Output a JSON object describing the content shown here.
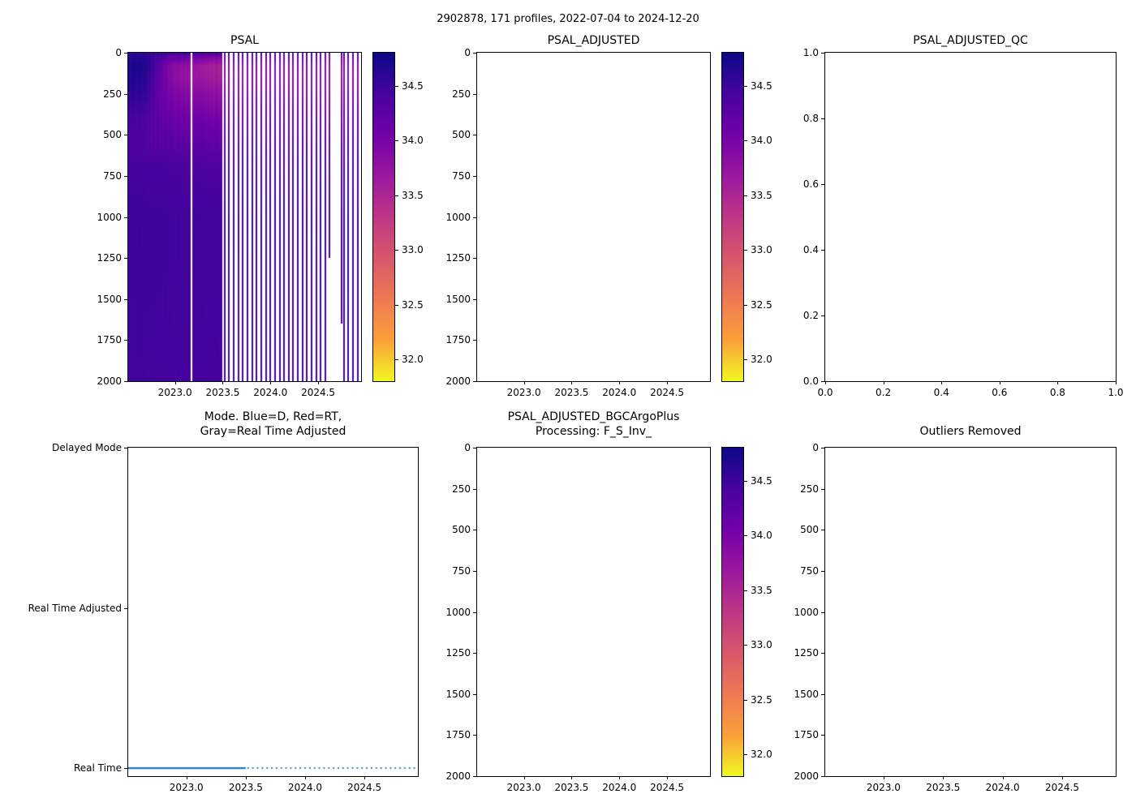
{
  "figure": {
    "title": "2902878, 171 profiles, 2022-07-04 to 2024-12-20"
  },
  "colors": {
    "line_blue": "#1f77b4",
    "axis": "#000000",
    "plasma_stops": [
      "#0d0887",
      "#46039f",
      "#7201a8",
      "#9c179e",
      "#bd3786",
      "#d8576b",
      "#ed7953",
      "#fb9f3a",
      "#f0f921"
    ]
  },
  "chart_data": [
    {
      "id": "psal",
      "type": "heatmap",
      "title": "PSAL",
      "x_axis": {
        "lim": [
          2022.51,
          2024.95
        ],
        "tick_values": [
          2023.0,
          2023.5,
          2024.0,
          2024.5
        ],
        "tick_labels": [
          "2023.0",
          "2023.5",
          "2024.0",
          "2024.5"
        ]
      },
      "y_axis": {
        "lim": [
          2000,
          0
        ],
        "tick_values": [
          0,
          250,
          500,
          750,
          1000,
          1250,
          1500,
          1750,
          2000
        ],
        "tick_labels": [
          "0",
          "250",
          "500",
          "750",
          "1000",
          "1250",
          "1500",
          "1750",
          "2000"
        ]
      },
      "colorbar": {
        "vmin": 31.8,
        "vmax": 34.8,
        "tick_values": [
          32.0,
          32.5,
          33.0,
          33.5,
          34.0,
          34.5
        ],
        "tick_labels": [
          "32.0",
          "32.5",
          "33.0",
          "33.5",
          "34.0",
          "34.5"
        ],
        "colormap": "plasma_r"
      },
      "depths": [
        0,
        30,
        80,
        150,
        250,
        400,
        550,
        700,
        1000,
        1500,
        2000
      ],
      "dense_columns": [
        {
          "time": 2022.52,
          "salinity": [
            34.55,
            34.62,
            34.68,
            34.66,
            34.6,
            34.42,
            34.34,
            34.42,
            34.48,
            34.46,
            34.44
          ]
        },
        {
          "time": 2022.7,
          "salinity": [
            34.52,
            34.6,
            34.64,
            34.6,
            34.5,
            34.32,
            34.3,
            34.4,
            34.47,
            34.46,
            34.44
          ]
        },
        {
          "time": 2022.85,
          "salinity": [
            34.48,
            34.4,
            34.22,
            34.15,
            34.15,
            34.22,
            34.3,
            34.4,
            34.47,
            34.46,
            34.44
          ]
        },
        {
          "time": 2022.95,
          "salinity": [
            34.45,
            34.15,
            33.88,
            33.9,
            34.0,
            34.15,
            34.28,
            34.38,
            34.46,
            34.45,
            34.44
          ]
        },
        {
          "time": 2023.05,
          "salinity": [
            34.48,
            34.2,
            33.82,
            33.8,
            33.95,
            34.1,
            34.26,
            34.38,
            34.46,
            34.45,
            34.44
          ]
        },
        {
          "time": 2023.15,
          "salinity": [
            34.45,
            34.1,
            33.76,
            33.72,
            33.9,
            34.08,
            34.25,
            34.37,
            34.46,
            34.45,
            34.44
          ]
        },
        {
          "time": 2023.3,
          "salinity": [
            34.42,
            34.0,
            33.62,
            33.66,
            33.85,
            34.06,
            34.22,
            34.36,
            34.45,
            34.45,
            34.43
          ]
        },
        {
          "time": 2023.45,
          "salinity": [
            34.4,
            33.95,
            33.58,
            33.62,
            33.8,
            34.05,
            34.2,
            34.35,
            34.45,
            34.45,
            34.43
          ]
        }
      ],
      "dense_end": 2023.5,
      "missing_times": [
        2023.17
      ],
      "sparse_profiles": {
        "start": 2023.52,
        "end": 2024.94,
        "interval": 0.048,
        "salinity": [
          34.4,
          34.12,
          33.9,
          33.86,
          33.96,
          34.12,
          34.26,
          34.38,
          34.46,
          34.45,
          34.44
        ],
        "missing_ranges": [
          [
            2024.6,
            2024.755
          ]
        ],
        "partial": [
          {
            "time": 2024.615,
            "max_depth": 1250
          },
          {
            "time": 2024.748,
            "max_depth": 1650
          }
        ]
      }
    },
    {
      "id": "psal_adjusted",
      "type": "heatmap",
      "title": "PSAL_ADJUSTED",
      "empty": true,
      "x_axis": {
        "lim": [
          2022.51,
          2024.95
        ],
        "tick_values": [
          2023.0,
          2023.5,
          2024.0,
          2024.5
        ],
        "tick_labels": [
          "2023.0",
          "2023.5",
          "2024.0",
          "2024.5"
        ]
      },
      "y_axis": {
        "lim": [
          2000,
          0
        ],
        "tick_values": [
          0,
          250,
          500,
          750,
          1000,
          1250,
          1500,
          1750,
          2000
        ],
        "tick_labels": [
          "0",
          "250",
          "500",
          "750",
          "1000",
          "1250",
          "1500",
          "1750",
          "2000"
        ]
      },
      "colorbar": {
        "vmin": 31.8,
        "vmax": 34.8,
        "tick_values": [
          32.0,
          32.5,
          33.0,
          33.5,
          34.0,
          34.5
        ],
        "tick_labels": [
          "32.0",
          "32.5",
          "33.0",
          "33.5",
          "34.0",
          "34.5"
        ],
        "colormap": "plasma_r"
      }
    },
    {
      "id": "psal_adjusted_qc",
      "type": "scatter",
      "title": "PSAL_ADJUSTED_QC",
      "empty": true,
      "x_axis": {
        "lim": [
          0,
          1
        ],
        "tick_values": [
          0.0,
          0.2,
          0.4,
          0.6,
          0.8,
          1.0
        ],
        "tick_labels": [
          "0.0",
          "0.2",
          "0.4",
          "0.6",
          "0.8",
          "1.0"
        ]
      },
      "y_axis": {
        "lim": [
          0,
          1
        ],
        "tick_values": [
          0.0,
          0.2,
          0.4,
          0.6,
          0.8,
          1.0
        ],
        "tick_labels": [
          "0.0",
          "0.2",
          "0.4",
          "0.6",
          "0.8",
          "1.0"
        ]
      }
    },
    {
      "id": "mode",
      "type": "line",
      "title_lines": [
        "Mode. Blue=D, Red=RT,",
        "Gray=Real Time Adjusted"
      ],
      "x_axis": {
        "lim": [
          2022.51,
          2024.95
        ],
        "tick_values": [
          2023.0,
          2023.5,
          2024.0,
          2024.5
        ],
        "tick_labels": [
          "2023.0",
          "2023.5",
          "2024.0",
          "2024.5"
        ]
      },
      "y_axis": {
        "lim": [
          -0.05,
          2.0
        ],
        "categories": [
          "Delayed Mode",
          "Real Time Adjusted",
          "Real Time"
        ],
        "category_values": [
          2,
          1,
          0
        ]
      },
      "series": [
        {
          "name": "mode",
          "category": "Real Time",
          "value": 0,
          "color": "#1f77b4",
          "solid_span": [
            2022.51,
            2023.5
          ],
          "dotted_span": [
            2023.52,
            2024.93
          ],
          "dot_interval": 0.04
        }
      ]
    },
    {
      "id": "psal_adjusted_bgc",
      "type": "heatmap",
      "title_lines": [
        "PSAL_ADJUSTED_BGCArgoPlus",
        "Processing: F_S_Inv_"
      ],
      "empty": true,
      "x_axis": {
        "lim": [
          2022.51,
          2024.95
        ],
        "tick_values": [
          2023.0,
          2023.5,
          2024.0,
          2024.5
        ],
        "tick_labels": [
          "2023.0",
          "2023.5",
          "2024.0",
          "2024.5"
        ]
      },
      "y_axis": {
        "lim": [
          2000,
          0
        ],
        "tick_values": [
          0,
          250,
          500,
          750,
          1000,
          1250,
          1500,
          1750,
          2000
        ],
        "tick_labels": [
          "0",
          "250",
          "500",
          "750",
          "1000",
          "1250",
          "1500",
          "1750",
          "2000"
        ]
      },
      "colorbar": {
        "vmin": 31.8,
        "vmax": 34.8,
        "tick_values": [
          32.0,
          32.5,
          33.0,
          33.5,
          34.0,
          34.5
        ],
        "tick_labels": [
          "32.0",
          "32.5",
          "33.0",
          "33.5",
          "34.0",
          "34.5"
        ],
        "colormap": "plasma_r"
      }
    },
    {
      "id": "outliers",
      "type": "heatmap",
      "title": "Outliers Removed",
      "empty": true,
      "x_axis": {
        "lim": [
          2022.51,
          2024.95
        ],
        "tick_values": [
          2023.0,
          2023.5,
          2024.0,
          2024.5
        ],
        "tick_labels": [
          "2023.0",
          "2023.5",
          "2024.0",
          "2024.5"
        ]
      },
      "y_axis": {
        "lim": [
          2000,
          0
        ],
        "tick_values": [
          0,
          250,
          500,
          750,
          1000,
          1250,
          1500,
          1750,
          2000
        ],
        "tick_labels": [
          "0",
          "250",
          "500",
          "750",
          "1000",
          "1250",
          "1500",
          "1750",
          "2000"
        ]
      }
    }
  ]
}
